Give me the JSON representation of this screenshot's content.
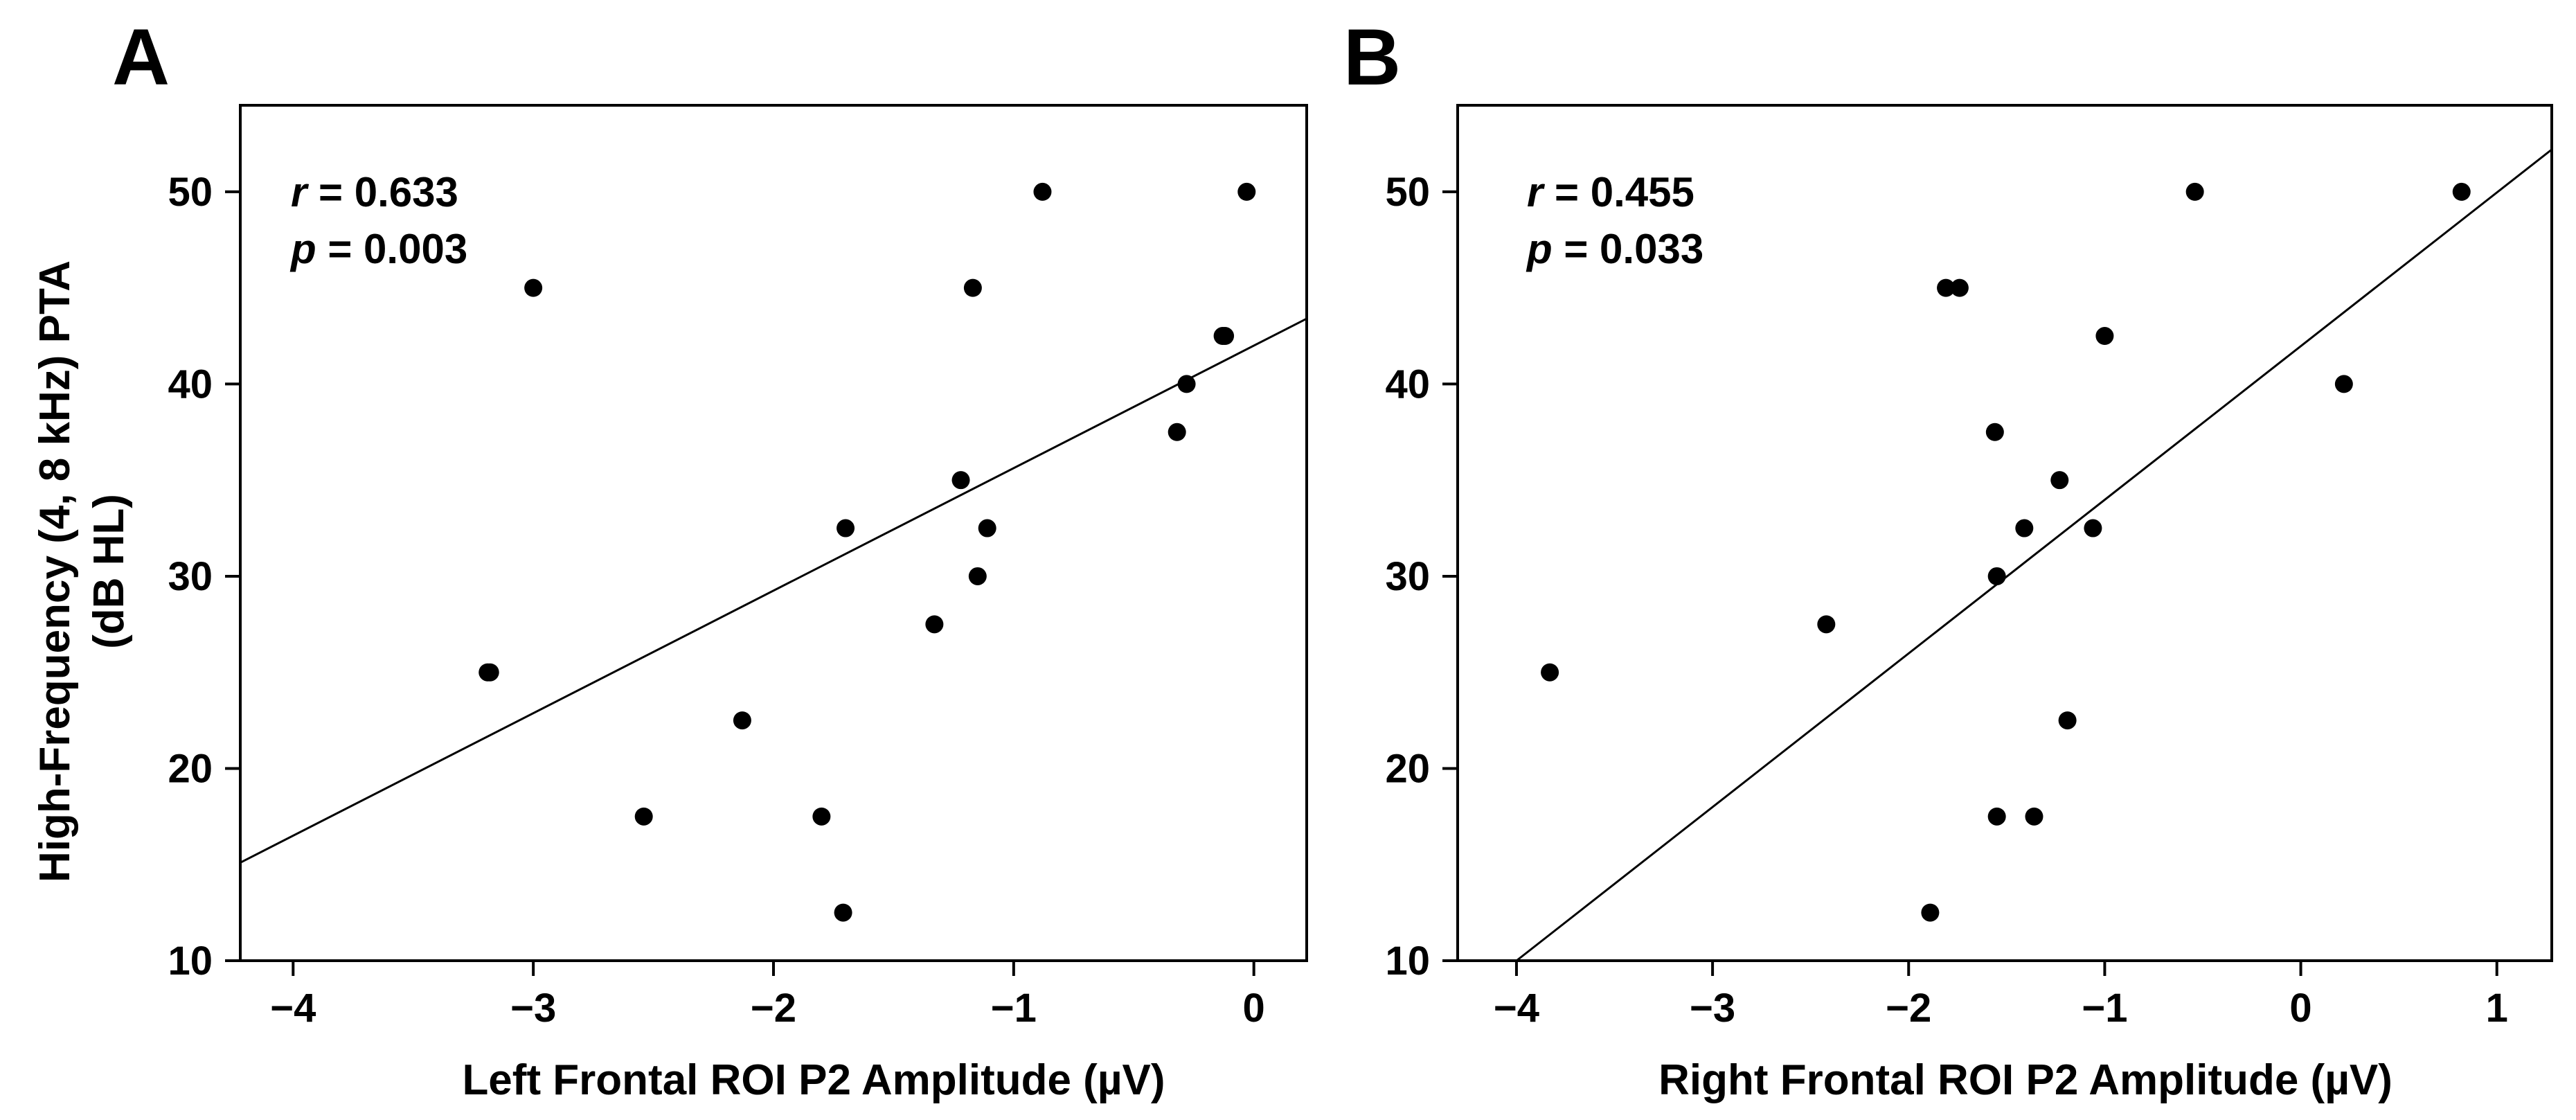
{
  "figure": {
    "ylabel_line1": "High-Frequency (4, 8 kHz) PTA",
    "ylabel_line2": "(dB HL)"
  },
  "chart_data": [
    {
      "type": "scatter",
      "panel": "A",
      "xlabel": "Left Frontal ROI P2 Amplitude (µV)",
      "ylabel": "High-Frequency (4, 8 kHz) PTA (dB HL)",
      "xlim": [
        -4.22,
        0.22
      ],
      "ylim": [
        10,
        54.5
      ],
      "xticks": [
        -4,
        -3,
        -2,
        -1,
        0
      ],
      "xtick_labels": [
        "−4",
        "−3",
        "−2",
        "−1",
        "0"
      ],
      "yticks": [
        10,
        20,
        30,
        40,
        50
      ],
      "ytick_labels": [
        "10",
        "20",
        "30",
        "40",
        "50"
      ],
      "stats": {
        "r_symbol": "r",
        "r_text": " = 0.633",
        "p_symbol": "p",
        "p_text": " = 0.003"
      },
      "fit": {
        "x": [
          -4.22,
          0.22
        ],
        "y": [
          15.1,
          43.4
        ]
      },
      "x": [
        -3.0,
        -3.19,
        -3.18,
        -2.54,
        -2.13,
        -1.8,
        -1.71,
        -1.7,
        -1.33,
        -1.22,
        -1.17,
        -1.15,
        -1.11,
        -0.88,
        -0.32,
        -0.28,
        -0.13,
        -0.12,
        -0.03
      ],
      "y": [
        45,
        25,
        25,
        17.5,
        22.5,
        17.5,
        12.5,
        32.5,
        27.5,
        35,
        45,
        30,
        32.5,
        50,
        37.5,
        40,
        42.5,
        42.5,
        50
      ]
    },
    {
      "type": "scatter",
      "panel": "B",
      "xlabel": "Right Frontal ROI P2 Amplitude (µV)",
      "ylabel": "High-Frequency (4, 8 kHz) PTA (dB HL)",
      "xlim": [
        -4.3,
        1.28
      ],
      "ylim": [
        10,
        54.5
      ],
      "xticks": [
        -4,
        -3,
        -2,
        -1,
        0,
        1
      ],
      "xtick_labels": [
        "−4",
        "−3",
        "−2",
        "−1",
        "0",
        "1"
      ],
      "yticks": [
        10,
        20,
        30,
        40,
        50
      ],
      "ytick_labels": [
        "10",
        "20",
        "30",
        "40",
        "50"
      ],
      "stats": {
        "r_symbol": "r",
        "r_text": " = 0.455",
        "p_symbol": "p",
        "p_text": " = 0.033"
      },
      "fit": {
        "x": [
          -4.0,
          1.28
        ],
        "y": [
          10,
          52.2
        ]
      },
      "x": [
        -3.83,
        -2.42,
        -1.89,
        -1.81,
        -1.74,
        -1.56,
        -1.55,
        -1.55,
        -1.41,
        -1.36,
        -1.23,
        -1.19,
        -1.06,
        -1.0,
        -0.54,
        0.22,
        0.82
      ],
      "y": [
        25,
        27.5,
        12.5,
        45,
        45,
        37.5,
        30,
        17.5,
        32.5,
        17.5,
        35,
        22.5,
        32.5,
        42.5,
        50,
        40,
        50
      ]
    }
  ]
}
